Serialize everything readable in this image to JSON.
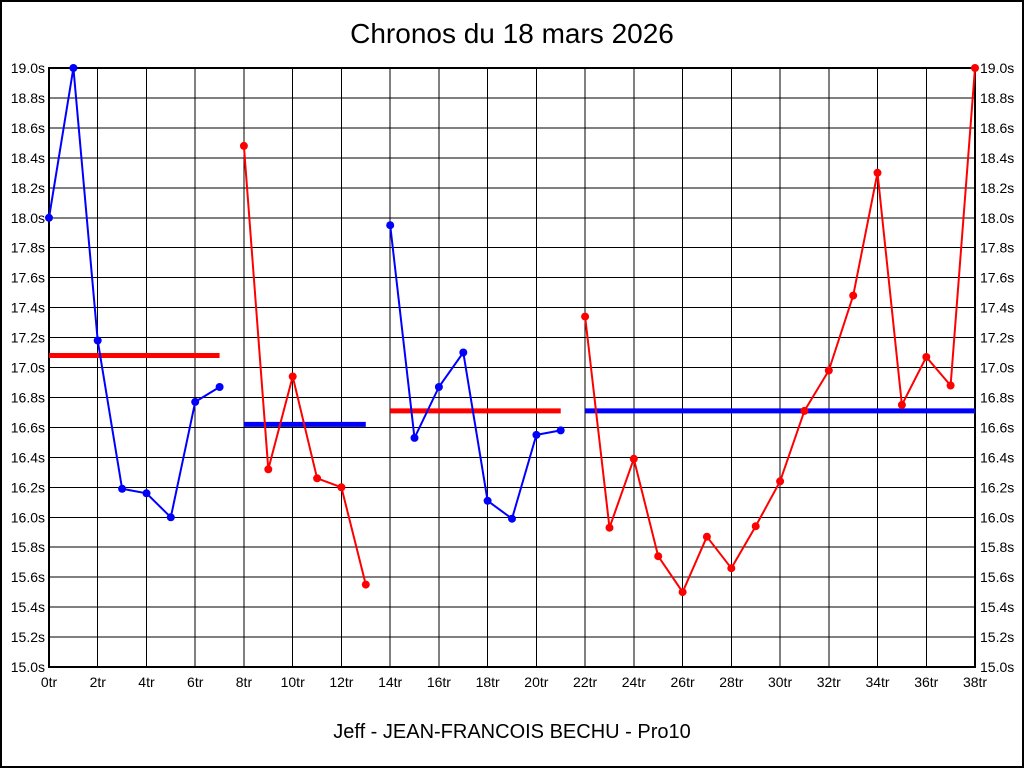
{
  "page": {
    "title": "Chronos du 18 mars 2026",
    "footer": "Jeff - JEAN-FRANCOIS BECHU - Pro10"
  },
  "chart_data": {
    "type": "line",
    "title": "Chronos du 18 mars 2026",
    "xlabel": "",
    "ylabel": "",
    "x_unit": "tr",
    "y_unit": "s",
    "xlim": [
      0,
      38
    ],
    "ylim": [
      15.0,
      19.0
    ],
    "x_tick_step": 2,
    "y_tick_step": 0.2,
    "grid": true,
    "legend_position": "none",
    "x_tick_labels": [
      "0tr",
      "2tr",
      "4tr",
      "6tr",
      "8tr",
      "10tr",
      "12tr",
      "14tr",
      "16tr",
      "18tr",
      "20tr",
      "22tr",
      "24tr",
      "26tr",
      "28tr",
      "30tr",
      "32tr",
      "34tr",
      "36tr",
      "38tr"
    ],
    "y_tick_labels_left": [
      "19.0s",
      "18.8s",
      "18.6s",
      "18.4s",
      "18.2s",
      "18.0s",
      "17.8s",
      "17.6s",
      "17.4s",
      "17.2s",
      "17.0s",
      "16.8s",
      "16.6s",
      "16.4s",
      "16.2s",
      "16.0s",
      "15.8s",
      "15.6s",
      "15.4s",
      "15.2s",
      "15.0s"
    ],
    "y_tick_labels_right": [
      "19.0s",
      "18.8s",
      "18.6s",
      "18.4s",
      "18.2s",
      "18.0s",
      "17.8s",
      "17.6s",
      "17.4s",
      "17.2s",
      "17.0s",
      "16.8s",
      "16.6s",
      "16.4s",
      "16.2s",
      "16.0s",
      "15.8s",
      "15.6s",
      "15.4s",
      "15.2s",
      "15.0s"
    ],
    "series": [
      {
        "name": "laps-1-blue",
        "color": "#0000ff",
        "points": [
          [
            0,
            18.0
          ],
          [
            1,
            19.0
          ],
          [
            2,
            17.18
          ],
          [
            3,
            16.19
          ],
          [
            4,
            16.16
          ],
          [
            5,
            16.0
          ],
          [
            6,
            16.77
          ],
          [
            7,
            16.87
          ]
        ]
      },
      {
        "name": "laps-2-red",
        "color": "#ff0000",
        "points": [
          [
            8,
            18.48
          ],
          [
            9,
            16.32
          ],
          [
            10,
            16.94
          ],
          [
            11,
            16.26
          ],
          [
            12,
            16.2
          ],
          [
            13,
            15.55
          ]
        ]
      },
      {
        "name": "laps-3-blue",
        "color": "#0000ff",
        "points": [
          [
            14,
            17.95
          ],
          [
            15,
            16.53
          ],
          [
            16,
            16.87
          ],
          [
            17,
            17.1
          ],
          [
            18,
            16.11
          ],
          [
            19,
            15.99
          ],
          [
            20,
            16.55
          ],
          [
            21,
            16.58
          ]
        ]
      },
      {
        "name": "laps-4-red",
        "color": "#ff0000",
        "points": [
          [
            22,
            17.34
          ],
          [
            23,
            15.93
          ],
          [
            24,
            16.39
          ],
          [
            25,
            15.74
          ],
          [
            26,
            15.5
          ],
          [
            27,
            15.87
          ],
          [
            28,
            15.66
          ],
          [
            29,
            15.94
          ],
          [
            30,
            16.24
          ],
          [
            31,
            16.71
          ],
          [
            32,
            16.98
          ],
          [
            33,
            17.48
          ],
          [
            34,
            18.3
          ],
          [
            35,
            16.75
          ],
          [
            36,
            17.07
          ],
          [
            37,
            16.88
          ],
          [
            38,
            19.0
          ]
        ]
      }
    ],
    "average_lines": [
      {
        "name": "avg-1",
        "color": "#ff0000",
        "x_start": 0,
        "x_end": 7,
        "value": 17.08
      },
      {
        "name": "avg-2",
        "color": "#0000ff",
        "x_start": 8,
        "x_end": 13,
        "value": 16.62
      },
      {
        "name": "avg-3",
        "color": "#ff0000",
        "x_start": 14,
        "x_end": 21,
        "value": 16.71
      },
      {
        "name": "avg-4",
        "color": "#0000ff",
        "x_start": 22,
        "x_end": 38,
        "value": 16.71
      }
    ],
    "colors": {
      "blue_series": "#0000ff",
      "red_series": "#ff0000",
      "grid": "#000000",
      "background": "#ffffff",
      "text": "#000000"
    }
  }
}
